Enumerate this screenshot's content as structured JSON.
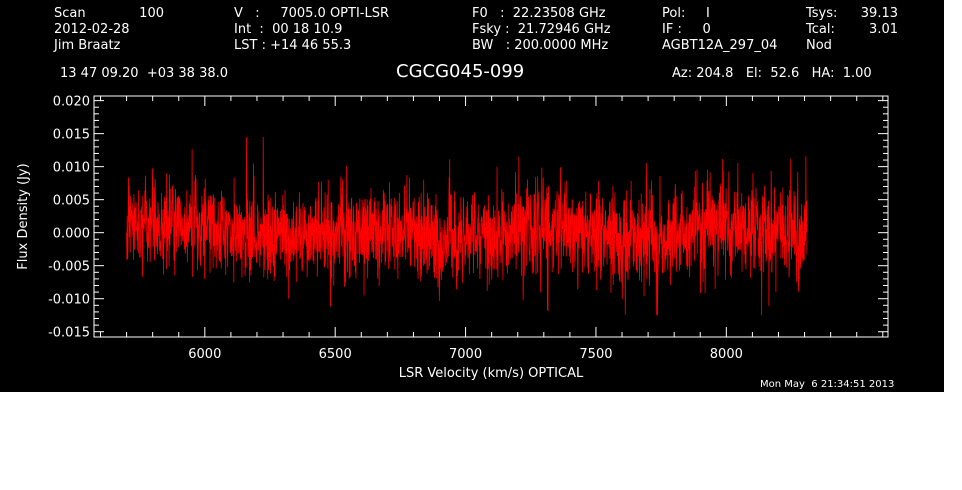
{
  "header": {
    "col1": {
      "scan_label": "Scan",
      "scan_value": "100",
      "date": "2012-02-28",
      "observer": "Jim Braatz"
    },
    "col2": {
      "v_line": "V   :     7005.0 OPTI-LSR",
      "int_line": "Int  :  00 18 10.9",
      "lst_line": "LST : +14 46 55.3"
    },
    "col3": {
      "f0_line": "F0   :  22.23508 GHz",
      "fsky_line": "Fsky :  21.72946 GHz",
      "bw_line": "BW   : 200.0000 MHz"
    },
    "col4": {
      "pol_line": "Pol:     I",
      "if_line": "IF :     0",
      "project": "AGBT12A_297_04"
    },
    "col5": {
      "tsys_label": "Tsys:",
      "tsys_value": "39.13",
      "tcal_label": "Tcal:",
      "tcal_value": "3.01",
      "mode": "Nod"
    },
    "coords": "13 47 09.20  +03 38 38.0",
    "source": "CGCG045-099",
    "az_el_ha": "Az: 204.8   El:  52.6   HA:  1.00"
  },
  "timestamp": "Mon May  6 21:34:51 2013",
  "colors": {
    "background": "#000000",
    "axes": "#ffffff",
    "spectrum": "#ff0000"
  },
  "chart_data": {
    "type": "line",
    "title": "",
    "xlabel": "LSR Velocity (km/s) OPTICAL",
    "ylabel": "Flux Density (Jy)",
    "xlim": [
      5575,
      8620
    ],
    "ylim": [
      -0.0158,
      0.0207
    ],
    "x_major_ticks": [
      6000,
      6500,
      7000,
      7500,
      8000
    ],
    "x_tick_labels": [
      "6000",
      "6500",
      "7000",
      "7500",
      "8000"
    ],
    "y_major_ticks": [
      -0.015,
      -0.01,
      -0.005,
      0.0,
      0.005,
      0.01,
      0.015,
      0.02
    ],
    "y_tick_labels": [
      "-0.015",
      "-0.010",
      "-0.005",
      "0.000",
      "0.005",
      "0.010",
      "0.015",
      "0.020"
    ],
    "grid": false,
    "series": [
      {
        "x_range": [
          5700,
          8310
        ],
        "noise_rms_approx": 0.0035,
        "noise_peak_approx": 0.0145,
        "mean_approx": 0.0,
        "color": "#ff0000"
      }
    ]
  }
}
